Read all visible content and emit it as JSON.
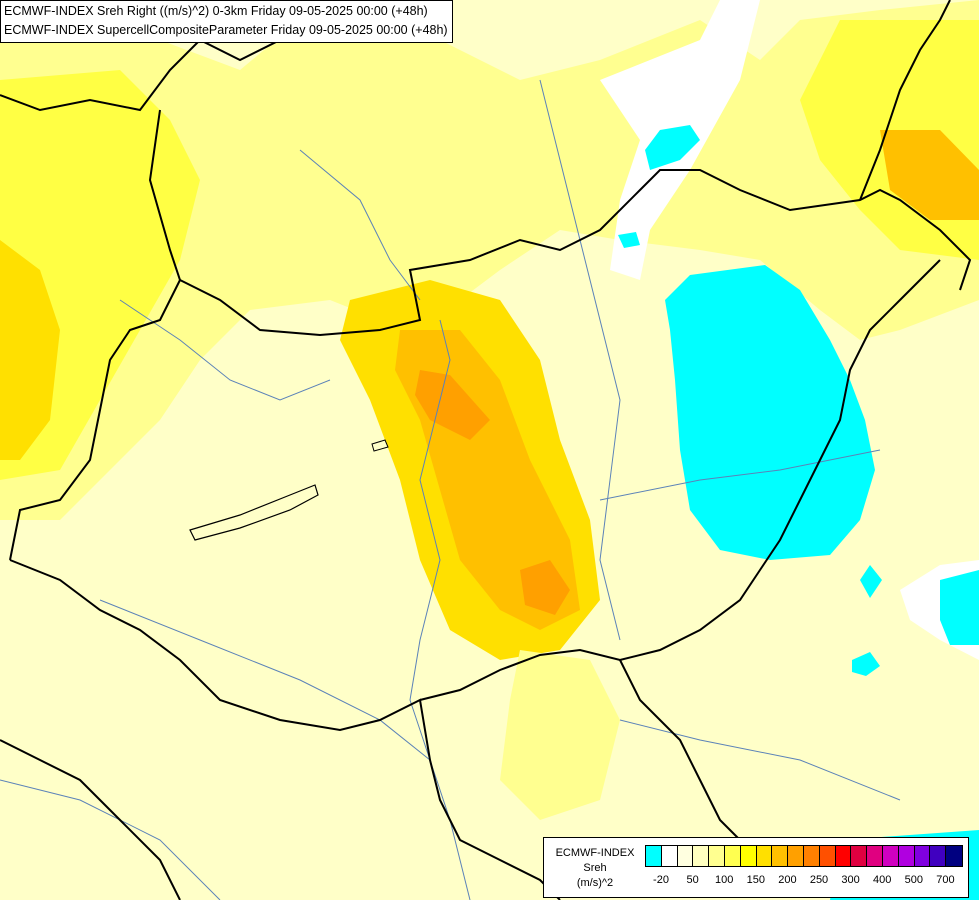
{
  "header": {
    "line1": "ECMWF-INDEX Sreh Right ((m/s)^2) 0-3km Friday 09-05-2025 00:00 (+48h)",
    "line2": "ECMWF-INDEX SupercellCompositeParameter Friday 09-05-2025 00:00 (+48h)"
  },
  "legend": {
    "title_lines": [
      "ECMWF-INDEX",
      "Sreh",
      "(m/s)^2"
    ],
    "colors": [
      "#00ffff",
      "#ffffff",
      "#ffffe0",
      "#ffffc0",
      "#ffff90",
      "#ffff50",
      "#ffff00",
      "#ffe000",
      "#ffc000",
      "#ffa000",
      "#ff8000",
      "#ff5000",
      "#ff0000",
      "#e00040",
      "#e00080",
      "#d000c0",
      "#b000e0",
      "#8000e0",
      "#4000c0",
      "#000080"
    ],
    "tick_labels": [
      "-20",
      "50",
      "100",
      "150",
      "200",
      "250",
      "300",
      "400",
      "500",
      "700"
    ]
  },
  "colors": {
    "water": "#00ffff",
    "low": "#ffffc8",
    "mid": "#ffff90",
    "yellow": "#ffff44",
    "gold": "#ffe000",
    "orange": "#ffc000",
    "deep_orange": "#ffa000"
  }
}
